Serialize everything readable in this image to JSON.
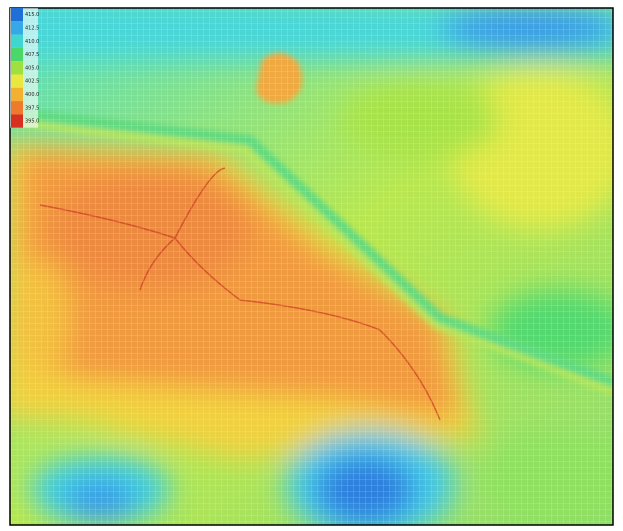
{
  "legend": {
    "items": [
      {
        "label": "415.0",
        "color": "#1f6fd6"
      },
      {
        "label": "412.5",
        "color": "#35a9e8"
      },
      {
        "label": "410.0",
        "color": "#3fd6d0"
      },
      {
        "label": "407.5",
        "color": "#4bd86a"
      },
      {
        "label": "405.0",
        "color": "#9fe040"
      },
      {
        "label": "402.5",
        "color": "#e8e840"
      },
      {
        "label": "400.0",
        "color": "#f4b030"
      },
      {
        "label": "397.5",
        "color": "#ee7a2c"
      },
      {
        "label": "395.0",
        "color": "#d83020"
      }
    ]
  }
}
